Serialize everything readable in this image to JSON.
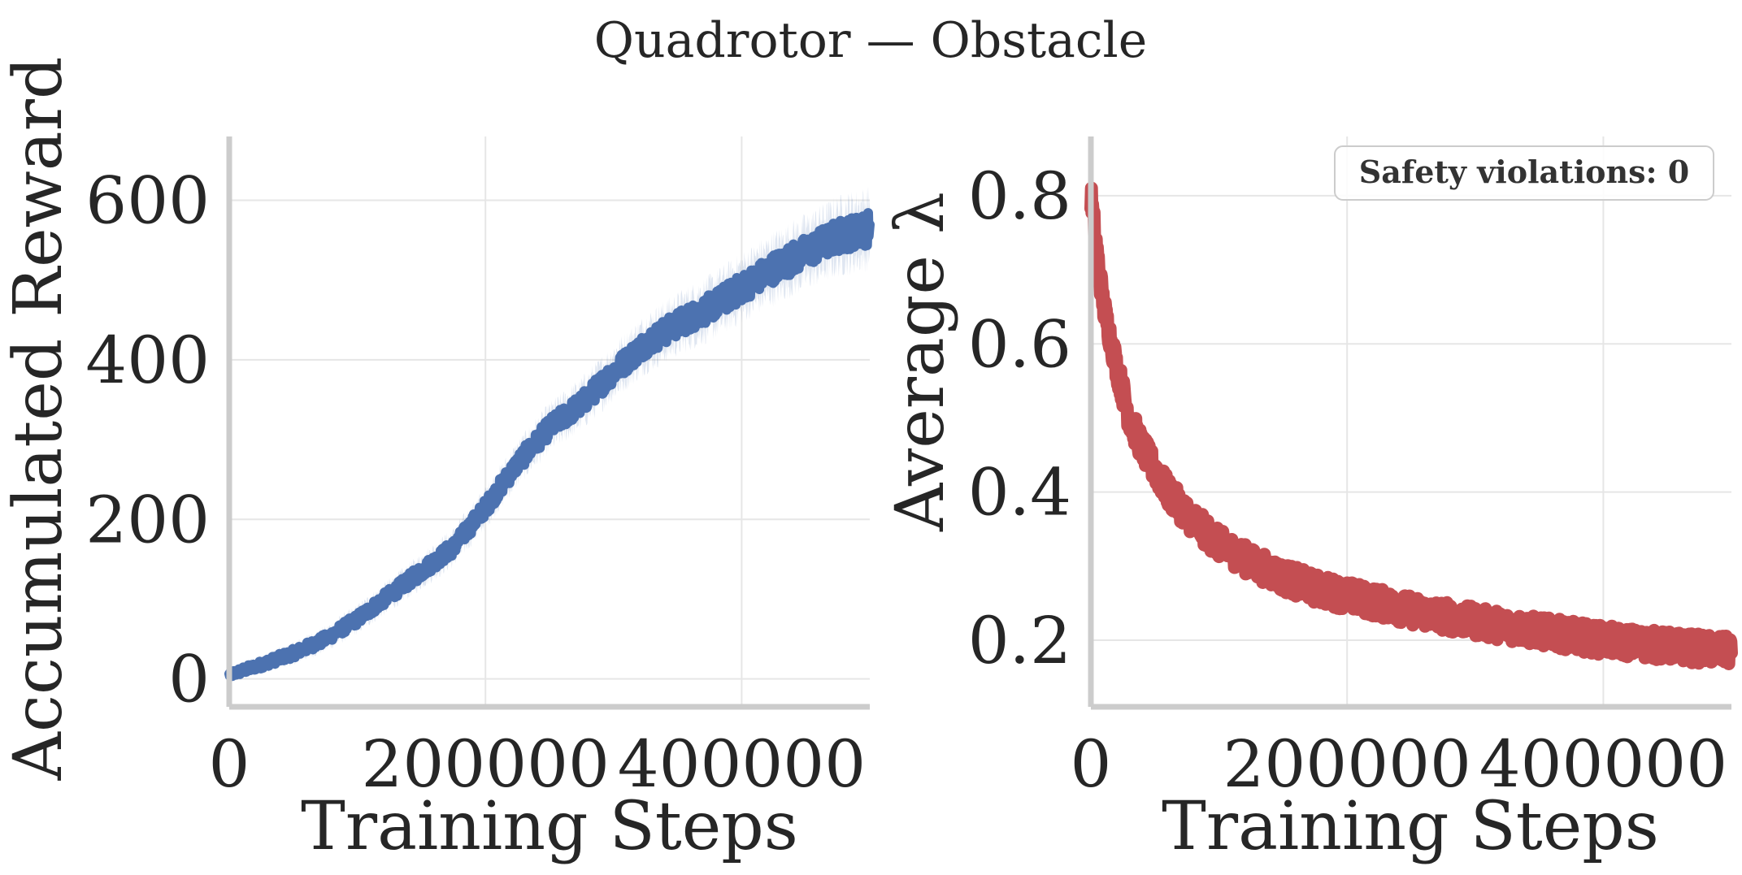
{
  "figure": {
    "title": "Quadrotor — Obstacle"
  },
  "chart_data": [
    {
      "type": "line",
      "title": "",
      "xlabel": "Training Steps",
      "ylabel": "Accumulated Reward",
      "xlim": [
        0,
        500000
      ],
      "ylim": [
        -35,
        680
      ],
      "xticks": [
        0,
        200000,
        400000
      ],
      "xtick_labels": [
        "0",
        "200000",
        "400000"
      ],
      "yticks": [
        0,
        200,
        400,
        600
      ],
      "ytick_labels": [
        "0",
        "200",
        "400",
        "600"
      ],
      "grid": true,
      "series": [
        {
          "color": "#4c72b0",
          "shaded_band": true,
          "x": [
            0,
            25000,
            50000,
            75000,
            100000,
            125000,
            150000,
            175000,
            200000,
            225000,
            250000,
            275000,
            300000,
            325000,
            350000,
            375000,
            400000,
            425000,
            450000,
            475000,
            500000
          ],
          "y": [
            5,
            18,
            32,
            50,
            75,
            105,
            135,
            165,
            215,
            270,
            315,
            345,
            385,
            420,
            445,
            465,
            490,
            515,
            535,
            555,
            565
          ]
        }
      ]
    },
    {
      "type": "line",
      "title": "",
      "xlabel": "Training Steps",
      "ylabel": "Average λ",
      "xlim": [
        0,
        500000
      ],
      "ylim": [
        0.11,
        0.88
      ],
      "xticks": [
        0,
        200000,
        400000
      ],
      "xtick_labels": [
        "0",
        "200000",
        "400000"
      ],
      "yticks": [
        0.2,
        0.4,
        0.6,
        0.8
      ],
      "ytick_labels": [
        "0.2",
        "0.4",
        "0.6",
        "0.8"
      ],
      "grid": true,
      "annotation": "Safety violations: 0",
      "annotation_position": "top-right",
      "series": [
        {
          "color": "#c44e52",
          "x": [
            0,
            5000,
            10000,
            20000,
            30000,
            40000,
            50000,
            60000,
            75000,
            90000,
            100000,
            125000,
            150000,
            175000,
            200000,
            250000,
            300000,
            350000,
            400000,
            450000,
            500000
          ],
          "y": [
            0.8,
            0.72,
            0.65,
            0.57,
            0.5,
            0.46,
            0.43,
            0.4,
            0.37,
            0.345,
            0.33,
            0.305,
            0.285,
            0.27,
            0.26,
            0.24,
            0.225,
            0.212,
            0.2,
            0.192,
            0.185
          ]
        }
      ]
    }
  ]
}
